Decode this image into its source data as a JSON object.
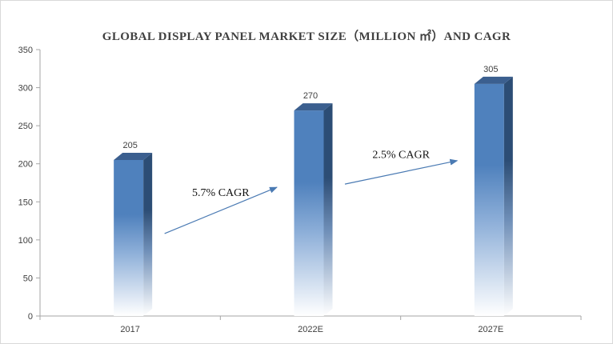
{
  "chart_data": {
    "type": "bar",
    "title": "GLOBAL DISPLAY PANEL MARKET SIZE（MILLION ㎡）AND CAGR",
    "categories": [
      "2017",
      "2022E",
      "2027E"
    ],
    "values": [
      205,
      270,
      305
    ],
    "data_labels": [
      "205",
      "270",
      "305"
    ],
    "ylim": [
      0,
      350
    ],
    "yticks": [
      "0",
      "50",
      "100",
      "150",
      "200",
      "250",
      "300",
      "350"
    ],
    "annotations": [
      {
        "text": "5.7% CAGR",
        "from_category": 0,
        "to_category": 1
      },
      {
        "text": "2.5% CAGR",
        "from_category": 1,
        "to_category": 2
      }
    ],
    "colors": {
      "bar_front": "#4f81bd",
      "bar_side": "#2c4d75",
      "bar_top": "#3b5f8f",
      "arrow": "#4a7ab3",
      "axis": "#a6a6a6"
    },
    "grid": false,
    "legend": "none"
  }
}
